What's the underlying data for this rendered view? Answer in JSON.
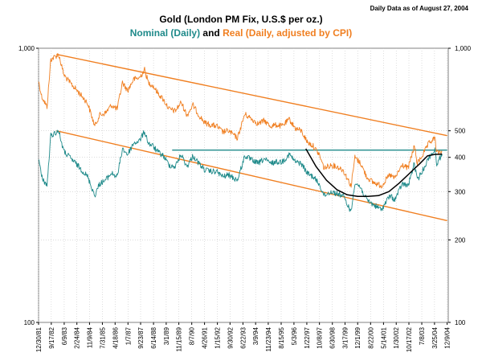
{
  "chart_data": {
    "type": "line",
    "title": "Gold (London PM Fix, U.S.$ per oz.)",
    "subtitle": {
      "part1": "Nominal (Daily)",
      "part2": " and ",
      "part3": "Real (Daily, adjusted by CPI)"
    },
    "note": "Daily Data as of August 27, 2004",
    "y_scale": "log",
    "ylim": [
      100,
      1000
    ],
    "xlim": [
      "1981-12-30",
      "2005-01-01"
    ],
    "y_ticks_left": [
      "1,000",
      "100"
    ],
    "y_tick_values_left": [
      1000,
      100
    ],
    "y_ticks_right": [
      "1,000",
      "500",
      "400",
      "300",
      "200",
      "100"
    ],
    "y_tick_values_right": [
      1000,
      500,
      400,
      300,
      200,
      100
    ],
    "x_tick_labels": [
      "12/30/81",
      "9/17/82",
      "6/9/83",
      "2/24/84",
      "11/9/84",
      "7/31/85",
      "4/18/86",
      "1/7/87",
      "9/23/87",
      "6/14/88",
      "3/1/89",
      "11/15/89",
      "8/7/90",
      "4/26/91",
      "1/15/92",
      "9/30/92",
      "6/22/93",
      "3/9/94",
      "11/23/94",
      "8/15/95",
      "5/3/96",
      "1/22/97",
      "10/8/97",
      "6/30/98",
      "3/17/99",
      "12/1/99",
      "8/22/00",
      "5/14/01",
      "1/30/02",
      "10/17/02",
      "7/8/03",
      "3/25/04",
      "12/9/04"
    ],
    "x_tick_dates": [
      "1981-12-30",
      "1982-09-17",
      "1983-06-09",
      "1984-02-24",
      "1984-11-09",
      "1985-07-31",
      "1986-04-18",
      "1987-01-07",
      "1987-09-23",
      "1988-06-14",
      "1989-03-01",
      "1989-11-15",
      "1990-08-07",
      "1991-04-26",
      "1992-01-15",
      "1992-09-30",
      "1993-06-22",
      "1994-03-09",
      "1994-11-23",
      "1995-08-15",
      "1996-05-03",
      "1997-01-22",
      "1997-10-08",
      "1998-06-30",
      "1999-03-17",
      "1999-12-01",
      "2000-08-22",
      "2001-05-14",
      "2002-01-30",
      "2002-10-17",
      "2003-07-08",
      "2004-03-25",
      "2004-12-09"
    ],
    "series": [
      {
        "name": "Nominal (Daily)",
        "color": "#1f8a8a",
        "x": [
          "1981-12-30",
          "1982-03-01",
          "1982-06-21",
          "1982-09-07",
          "1983-02-15",
          "1983-06-01",
          "1983-10-01",
          "1984-02-01",
          "1984-06-01",
          "1984-10-01",
          "1985-02-25",
          "1985-06-01",
          "1985-10-01",
          "1986-02-01",
          "1986-06-01",
          "1986-09-15",
          "1987-01-01",
          "1987-05-01",
          "1987-09-01",
          "1987-12-14",
          "1988-03-01",
          "1988-06-01",
          "1988-09-01",
          "1989-01-01",
          "1989-05-01",
          "1989-09-01",
          "1990-01-01",
          "1990-05-01",
          "1990-09-01",
          "1991-01-01",
          "1991-05-01",
          "1991-09-01",
          "1992-01-01",
          "1992-05-01",
          "1992-09-01",
          "1993-03-01",
          "1993-07-30",
          "1994-01-01",
          "1994-05-01",
          "1994-09-01",
          "1995-01-01",
          "1995-05-01",
          "1995-09-01",
          "1996-02-01",
          "1996-06-01",
          "1996-10-01",
          "1997-02-01",
          "1997-06-01",
          "1997-10-01",
          "1998-01-12",
          "1998-06-01",
          "1998-10-01",
          "1999-02-01",
          "1999-07-20",
          "1999-10-05",
          "2000-02-01",
          "2000-06-01",
          "2000-10-01",
          "2001-04-02",
          "2001-09-20",
          "2002-01-01",
          "2002-06-01",
          "2002-10-01",
          "2003-02-05",
          "2003-04-07",
          "2003-08-01",
          "2003-12-01",
          "2004-04-01",
          "2004-05-10",
          "2004-08-27"
        ],
        "values": [
          400,
          340,
          315,
          480,
          500,
          420,
          400,
          380,
          360,
          340,
          290,
          320,
          330,
          350,
          340,
          430,
          410,
          450,
          460,
          497,
          450,
          440,
          420,
          405,
          375,
          370,
          410,
          370,
          405,
          380,
          360,
          355,
          355,
          340,
          345,
          330,
          405,
          390,
          380,
          395,
          380,
          385,
          385,
          410,
          385,
          380,
          350,
          340,
          320,
          290,
          300,
          295,
          290,
          253,
          325,
          310,
          280,
          270,
          258,
          290,
          280,
          320,
          315,
          380,
          330,
          360,
          400,
          425,
          380,
          410
        ]
      },
      {
        "name": "Real (Daily, adjusted by CPI)",
        "color": "#f07f21",
        "x": [
          "1981-12-30",
          "1982-03-01",
          "1982-06-21",
          "1982-09-07",
          "1983-02-15",
          "1983-06-01",
          "1983-10-01",
          "1984-02-01",
          "1984-06-01",
          "1984-10-01",
          "1985-02-25",
          "1985-06-01",
          "1985-10-01",
          "1986-02-01",
          "1986-06-01",
          "1986-09-15",
          "1987-01-01",
          "1987-05-01",
          "1987-09-01",
          "1987-12-14",
          "1988-03-01",
          "1988-06-01",
          "1988-09-01",
          "1989-01-01",
          "1989-05-01",
          "1989-09-01",
          "1990-01-01",
          "1990-05-01",
          "1990-09-01",
          "1991-01-01",
          "1991-05-01",
          "1991-09-01",
          "1992-01-01",
          "1992-05-01",
          "1992-09-01",
          "1993-03-01",
          "1993-07-30",
          "1994-01-01",
          "1994-05-01",
          "1994-09-01",
          "1995-01-01",
          "1995-05-01",
          "1995-09-01",
          "1996-02-01",
          "1996-06-01",
          "1996-10-01",
          "1997-02-01",
          "1997-06-01",
          "1997-10-01",
          "1998-01-12",
          "1998-06-01",
          "1998-10-01",
          "1999-02-01",
          "1999-07-20",
          "1999-10-05",
          "2000-02-01",
          "2000-06-01",
          "2000-10-01",
          "2001-04-02",
          "2001-09-20",
          "2002-01-01",
          "2002-06-01",
          "2002-10-01",
          "2003-02-05",
          "2003-04-07",
          "2003-08-01",
          "2003-12-01",
          "2004-04-01",
          "2004-05-10",
          "2004-08-27"
        ],
        "values": [
          760,
          670,
          610,
          910,
          950,
          800,
          750,
          710,
          670,
          630,
          520,
          570,
          580,
          620,
          600,
          750,
          700,
          770,
          780,
          835,
          750,
          730,
          690,
          650,
          600,
          590,
          635,
          570,
          620,
          570,
          535,
          525,
          520,
          495,
          500,
          470,
          575,
          550,
          530,
          545,
          520,
          525,
          520,
          550,
          510,
          500,
          455,
          440,
          410,
          365,
          375,
          370,
          360,
          315,
          400,
          380,
          340,
          325,
          315,
          345,
          335,
          375,
          365,
          440,
          380,
          410,
          450,
          470,
          415,
          420
        ]
      }
    ],
    "trend_lines": [
      {
        "name": "upper channel",
        "color": "#f07f21",
        "from": {
          "x": "1983-01-01",
          "y": 950
        },
        "to": {
          "x": "2004-12-09",
          "y": 480
        }
      },
      {
        "name": "lower channel",
        "color": "#f07f21",
        "from": {
          "x": "1983-01-01",
          "y": 500
        },
        "to": {
          "x": "2004-12-09",
          "y": 235
        }
      },
      {
        "name": "resistance",
        "color": "#1f8a8a",
        "from": {
          "x": "1989-07-01",
          "y": 425
        },
        "to": {
          "x": "2004-12-09",
          "y": 425
        }
      }
    ],
    "base_curve": {
      "name": "saucer",
      "color": "#000000",
      "x": [
        "1997-01-01",
        "1997-08-01",
        "1998-03-01",
        "1998-10-01",
        "1999-05-01",
        "1999-12-01",
        "2000-07-01",
        "2001-02-01",
        "2001-09-01",
        "2002-04-01",
        "2002-11-01",
        "2003-06-01",
        "2003-11-01",
        "2004-04-01",
        "2004-08-27"
      ],
      "values": [
        430,
        370,
        330,
        305,
        292,
        288,
        288,
        290,
        300,
        322,
        350,
        380,
        405,
        410,
        411
      ]
    },
    "grid": true,
    "legend": "subtitle"
  }
}
